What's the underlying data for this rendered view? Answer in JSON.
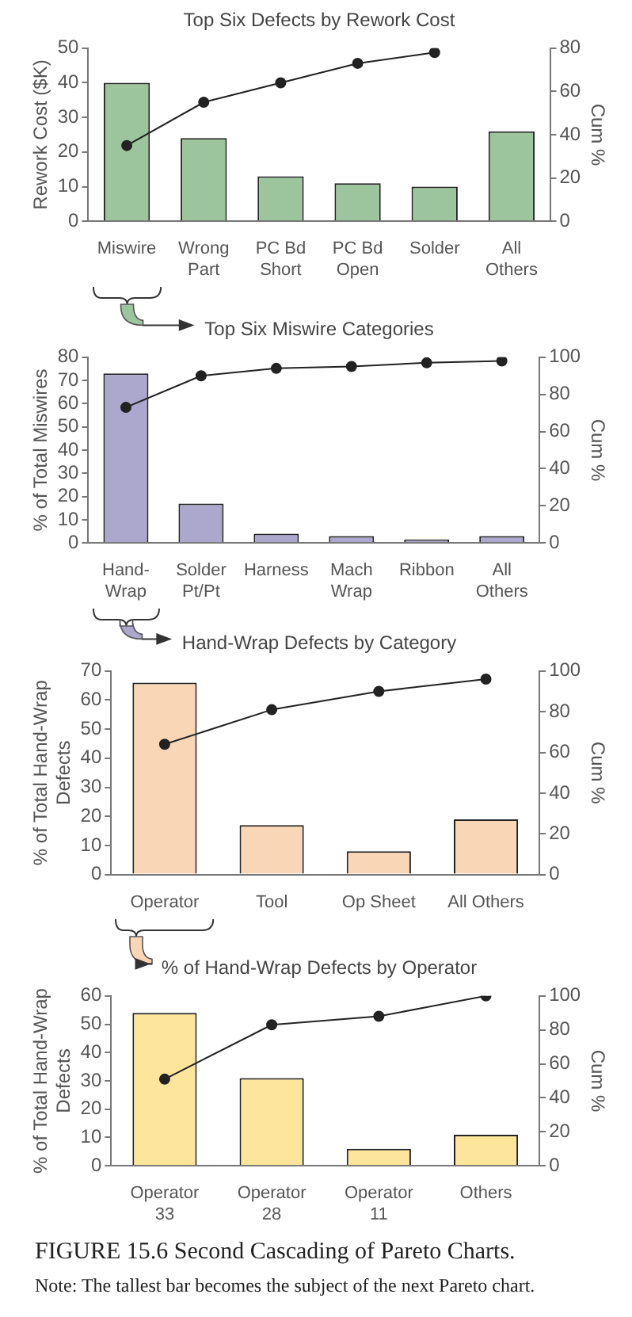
{
  "chart_data": [
    {
      "type": "bar",
      "title": "Top Six Defects by Rework Cost",
      "ylabel": "Rework Cost ($K)",
      "y2label": "Cum %",
      "categories": [
        "Miswire",
        "Wrong Part",
        "PC Bd Short",
        "PC Bd Open",
        "Solder",
        "All Others"
      ],
      "ylim": [
        0,
        50
      ],
      "yticks": [
        0,
        10,
        20,
        30,
        40,
        50
      ],
      "y2lim": [
        0,
        80
      ],
      "y2ticks": [
        0,
        20,
        40,
        60,
        80
      ],
      "marker": "circle",
      "series": [
        {
          "type": "bar",
          "color": "#9dc59d",
          "values": [
            40,
            24,
            13,
            11,
            10,
            26
          ]
        },
        {
          "type": "line",
          "axis": "y2",
          "color": "#222222",
          "values": [
            35,
            55,
            64,
            73,
            78,
            null
          ]
        }
      ]
    },
    {
      "type": "bar",
      "title": "Top Six Miswire Categories",
      "ylabel": "% of Total Miswires",
      "y2label": "Cum %",
      "categories": [
        "Hand-Wrap",
        "Solder Pt/Pt",
        "Harness",
        "Mach Wrap",
        "Ribbon",
        "All Others"
      ],
      "ylim": [
        0,
        80
      ],
      "yticks": [
        0,
        10,
        20,
        30,
        40,
        50,
        60,
        70,
        80
      ],
      "y2lim": [
        0,
        100
      ],
      "y2ticks": [
        0,
        20,
        40,
        60,
        80,
        100
      ],
      "marker": "circle",
      "series": [
        {
          "type": "bar",
          "color": "#aba7cd",
          "values": [
            73,
            17,
            4,
            3,
            1.5,
            3
          ]
        },
        {
          "type": "line",
          "axis": "y2",
          "color": "#222222",
          "values": [
            73,
            90,
            94,
            95,
            97,
            98
          ]
        }
      ]
    },
    {
      "type": "bar",
      "title": "Hand-Wrap Defects by Category",
      "ylabel": "% of Total Hand-Wrap Defects",
      "y2label": "Cum %",
      "categories": [
        "Operator",
        "Tool",
        "Op Sheet",
        "All Others"
      ],
      "ylim": [
        0,
        70
      ],
      "yticks": [
        0,
        10,
        20,
        30,
        40,
        50,
        60,
        70
      ],
      "y2lim": [
        0,
        100
      ],
      "y2ticks": [
        0,
        20,
        40,
        60,
        80,
        100
      ],
      "marker": "circle",
      "series": [
        {
          "type": "bar",
          "color": "#f9d6b5",
          "values": [
            66,
            17,
            8,
            19
          ]
        },
        {
          "type": "line",
          "axis": "y2",
          "color": "#222222",
          "values": [
            64,
            81,
            90,
            96
          ]
        }
      ]
    },
    {
      "type": "bar",
      "title": "% of Hand-Wrap Defects by Operator",
      "ylabel": "% of Total Hand-Wrap Defects",
      "y2label": "Cum %",
      "categories": [
        "Operator 33",
        "Operator 28",
        "Operator 11",
        "Others"
      ],
      "ylim": [
        0,
        60
      ],
      "yticks": [
        0,
        10,
        20,
        30,
        40,
        50,
        60
      ],
      "y2lim": [
        0,
        100
      ],
      "y2ticks": [
        0,
        20,
        40,
        60,
        80,
        100
      ],
      "marker": "circle",
      "series": [
        {
          "type": "bar",
          "color": "#fde59c",
          "values": [
            54,
            31,
            6,
            11
          ]
        },
        {
          "type": "line",
          "axis": "y2",
          "color": "#222222",
          "values": [
            51,
            83,
            88,
            100
          ]
        }
      ],
      "annotations": [
        "FIGURE 15.6 Second Cascading of Pareto Charts.",
        "Note: The tallest bar becomes the subject of the next Pareto chart."
      ]
    }
  ]
}
